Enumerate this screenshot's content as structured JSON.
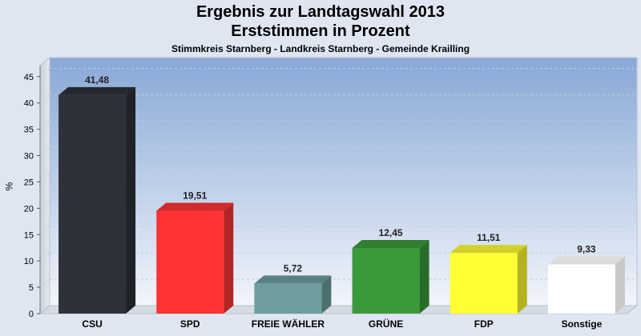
{
  "title": "Ergebnis zur Landtagswahl 2013",
  "subtitle": "Erststimmen in Prozent",
  "caption": "Stimmkreis Starnberg - Landkreis Starnberg - Gemeinde Krailling",
  "chart_data": {
    "type": "bar",
    "ylabel": "%",
    "ylim": [
      0,
      48
    ],
    "yticks": [
      0,
      5,
      10,
      15,
      20,
      25,
      30,
      35,
      40,
      45
    ],
    "grid": true,
    "categories": [
      "CSU",
      "SPD",
      "FREIE WÄHLER",
      "GRÜNE",
      "FDP",
      "Sonstige"
    ],
    "values": [
      41.48,
      19.51,
      5.72,
      12.45,
      11.51,
      9.33
    ],
    "value_labels": [
      "41,48",
      "19,51",
      "5,72",
      "12,45",
      "11,51",
      "9,33"
    ],
    "colors": [
      "#2e3139",
      "#ff3333",
      "#6e9e9e",
      "#3a9a3a",
      "#ffff33",
      "#ffffff"
    ]
  }
}
